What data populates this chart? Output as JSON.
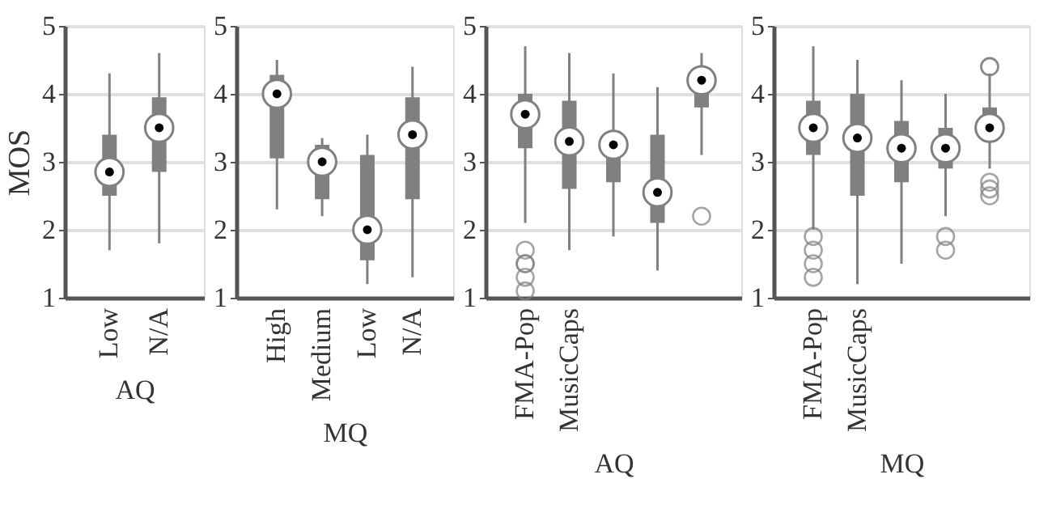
{
  "chart_data": [
    {
      "type": "box",
      "ylabel": "MOS",
      "xlabel": "AQ",
      "categories": [
        "Low",
        "N/A"
      ],
      "color": "#808080",
      "ylim": [
        1,
        5
      ],
      "yticks": [
        1,
        2,
        3,
        4,
        5
      ],
      "grid": "y",
      "boxes": [
        {
          "low": 1.7,
          "q1": 2.5,
          "median": 2.85,
          "q3": 3.4,
          "high": 4.3
        },
        {
          "low": 1.8,
          "q1": 2.85,
          "median": 3.5,
          "q3": 3.95,
          "high": 4.6
        }
      ]
    },
    {
      "type": "box",
      "xlabel": "MQ",
      "categories": [
        "High",
        "Medium",
        "Low",
        "N/A"
      ],
      "color": "#808080",
      "ylim": [
        1,
        5
      ],
      "yticks": [
        1,
        2,
        3,
        4,
        5
      ],
      "grid": "y",
      "boxes": [
        {
          "low": 2.3,
          "q1": 3.05,
          "median": 4.0,
          "q3": 4.28,
          "high": 4.5
        },
        {
          "low": 2.2,
          "q1": 2.45,
          "median": 3.0,
          "q3": 3.25,
          "high": 3.35
        },
        {
          "low": 1.2,
          "q1": 1.55,
          "median": 2.0,
          "q3": 3.1,
          "high": 3.4
        },
        {
          "low": 1.3,
          "q1": 2.45,
          "median": 3.4,
          "q3": 3.95,
          "high": 4.4
        }
      ]
    },
    {
      "type": "box",
      "xlabel": "AQ",
      "categories": [
        "FMA-Pop",
        "MusicCaps",
        null,
        null,
        null
      ],
      "color": "#808080",
      "ylim": [
        1,
        5
      ],
      "yticks": [
        1,
        2,
        3,
        4,
        5
      ],
      "grid": "y",
      "boxes": [
        {
          "low": 2.1,
          "q1": 3.2,
          "median": 3.7,
          "q3": 4.0,
          "high": 4.7,
          "outliers": [
            1.1,
            1.3,
            1.5,
            1.5,
            1.7
          ]
        },
        {
          "low": 1.7,
          "q1": 2.6,
          "median": 3.3,
          "q3": 3.9,
          "high": 4.6
        },
        {
          "low": 1.9,
          "q1": 2.7,
          "median": 3.25,
          "q3": 3.3,
          "high": 4.3
        },
        {
          "low": 1.4,
          "q1": 2.1,
          "median": 2.55,
          "q3": 3.4,
          "high": 4.1
        },
        {
          "low": 3.1,
          "q1": 3.8,
          "median": 4.2,
          "q3": 4.1,
          "high": 4.6,
          "outliers": [
            2.2
          ]
        }
      ]
    },
    {
      "type": "box",
      "xlabel": "MQ",
      "categories": [
        "FMA-Pop",
        "MusicCaps",
        null,
        null,
        null
      ],
      "color": "#808080",
      "ylim": [
        1,
        5
      ],
      "yticks": [
        1,
        2,
        3,
        4,
        5
      ],
      "grid": "y",
      "boxes": [
        {
          "low": 2.0,
          "q1": 3.1,
          "median": 3.5,
          "q3": 3.9,
          "high": 4.7,
          "outliers": [
            1.3,
            1.5,
            1.7,
            1.9
          ]
        },
        {
          "low": 1.2,
          "q1": 2.5,
          "median": 3.35,
          "q3": 4.0,
          "high": 4.5
        },
        {
          "low": 1.5,
          "q1": 2.7,
          "median": 3.2,
          "q3": 3.6,
          "high": 4.2
        },
        {
          "low": 2.2,
          "q1": 2.9,
          "median": 3.2,
          "q3": 3.5,
          "high": 4.0,
          "outliers": [
            1.7,
            1.9
          ]
        },
        {
          "low": 2.9,
          "q1": 3.3,
          "median": 3.5,
          "q3": 3.8,
          "high": 4.3,
          "outliers": [
            2.5,
            2.6,
            2.7,
            4.4,
            4.4
          ]
        }
      ]
    }
  ]
}
